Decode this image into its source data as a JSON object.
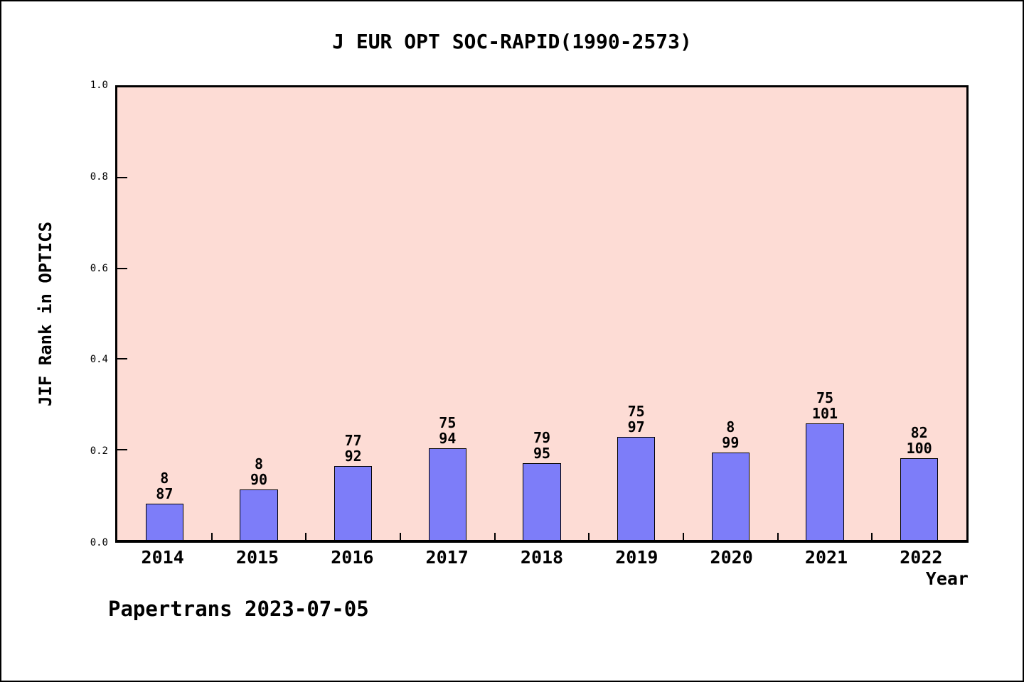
{
  "title": "J EUR OPT SOC-RAPID(1990-2573)",
  "footer": "Papertrans 2023-07-05",
  "chart_data": {
    "type": "bar",
    "title": "J EUR OPT SOC-RAPID(1990-2573)",
    "xlabel": "Year",
    "ylabel": "JIF Rank in OPTICS",
    "ylim": [
      0.0,
      1.0
    ],
    "yticks": [
      "0.0",
      "0.2",
      "0.4",
      "0.6",
      "0.8",
      "1.0"
    ],
    "grid": false,
    "legend": null,
    "categories": [
      "2014",
      "2015",
      "2016",
      "2017",
      "2018",
      "2019",
      "2020",
      "2021",
      "2022"
    ],
    "values": [
      0.08,
      0.112,
      0.164,
      0.203,
      0.169,
      0.228,
      0.193,
      0.258,
      0.181
    ],
    "bar_labels": [
      [
        "8",
        "87"
      ],
      [
        "8",
        "90"
      ],
      [
        "77",
        "92"
      ],
      [
        "75",
        "94"
      ],
      [
        "79",
        "95"
      ],
      [
        "75",
        "97"
      ],
      [
        "8",
        "99"
      ],
      [
        "75",
        "101"
      ],
      [
        "82",
        "100"
      ]
    ],
    "bar_color": "#7d7df9",
    "bar_edge_color": "#000000",
    "plot_bg_color": "#fddcd5",
    "axis_color": "#000000"
  }
}
